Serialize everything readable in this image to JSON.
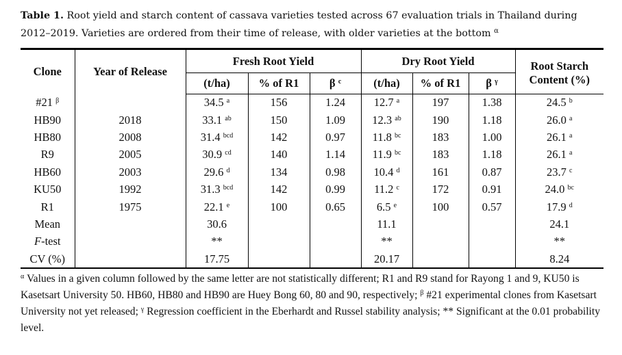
{
  "caption": {
    "label": "Table 1.",
    "text": " Root yield and starch content of cassava varieties tested across 67 evaluation trials in Thailand during 2012–2019. Varieties are ordered from their time of release, with older varieties at the bottom ",
    "sup": "α"
  },
  "headers": {
    "clone": "Clone",
    "year": "Year of Release",
    "fresh": "Fresh Root Yield",
    "dry": "Dry Root Yield",
    "starch1": "Root Starch",
    "starch2": "Content (%)",
    "tha": "(t/ha)",
    "pct": "% of R1",
    "beta": "β",
    "fresh_beta_sup": "c",
    "dry_beta_sup": "γ"
  },
  "rows": [
    {
      "clone": "#21",
      "clone_sup": "β",
      "year": "",
      "fy": "34.5",
      "fy_sup": "a",
      "fp": "156",
      "fb": "1.24",
      "dy": "12.7",
      "dy_sup": "a",
      "dp": "197",
      "db": "1.38",
      "s": "24.5",
      "s_sup": "b"
    },
    {
      "clone": "HB90",
      "clone_sup": "",
      "year": "2018",
      "fy": "33.1",
      "fy_sup": "ab",
      "fp": "150",
      "fb": "1.09",
      "dy": "12.3",
      "dy_sup": "ab",
      "dp": "190",
      "db": "1.18",
      "s": "26.0",
      "s_sup": "a"
    },
    {
      "clone": "HB80",
      "clone_sup": "",
      "year": "2008",
      "fy": "31.4",
      "fy_sup": "bcd",
      "fp": "142",
      "fb": "0.97",
      "dy": "11.8",
      "dy_sup": "bc",
      "dp": "183",
      "db": "1.00",
      "s": "26.1",
      "s_sup": "a"
    },
    {
      "clone": "R9",
      "clone_sup": "",
      "year": "2005",
      "fy": "30.9",
      "fy_sup": "cd",
      "fp": "140",
      "fb": "1.14",
      "dy": "11.9",
      "dy_sup": "bc",
      "dp": "183",
      "db": "1.18",
      "s": "26.1",
      "s_sup": "a"
    },
    {
      "clone": "HB60",
      "clone_sup": "",
      "year": "2003",
      "fy": "29.6",
      "fy_sup": "d",
      "fp": "134",
      "fb": "0.98",
      "dy": "10.4",
      "dy_sup": "d",
      "dp": "161",
      "db": "0.87",
      "s": "23.7",
      "s_sup": "c"
    },
    {
      "clone": "KU50",
      "clone_sup": "",
      "year": "1992",
      "fy": "31.3",
      "fy_sup": "bcd",
      "fp": "142",
      "fb": "0.99",
      "dy": "11.2",
      "dy_sup": "c",
      "dp": "172",
      "db": "0.91",
      "s": "24.0",
      "s_sup": "bc"
    },
    {
      "clone": "R1",
      "clone_sup": "",
      "year": "1975",
      "fy": "22.1",
      "fy_sup": "e",
      "fp": "100",
      "fb": "0.65",
      "dy": "6.5",
      "dy_sup": "e",
      "dp": "100",
      "db": "0.57",
      "s": "17.9",
      "s_sup": "d"
    }
  ],
  "summary": [
    {
      "label": "Mean",
      "italic": "",
      "fy": "30.6",
      "dy": "11.1",
      "s": "24.1"
    },
    {
      "label": "-test",
      "italic": "F",
      "fy": "**",
      "dy": "**",
      "s": "**"
    },
    {
      "label": "CV (%)",
      "italic": "",
      "fy": "17.75",
      "dy": "20.17",
      "s": "8.24"
    }
  ],
  "footnote": {
    "a_sup": "α",
    "a": " Values in a given column followed by the same letter are not statistically different; R1 and R9 stand for Rayong 1 and 9, KU50 is Kasetsart University 50. HB60, HB80 and HB90 are Huey Bong 60, 80 and 90, respectively; ",
    "b_sup": "β",
    "b": " #21 experimental clones from Kasetsart University not yet released; ",
    "g_sup": "γ",
    "g": " Regression coefficient in the Eberhardt and Russel stability analysis; ",
    "sig": "** Significant at the 0.01 probability level."
  }
}
